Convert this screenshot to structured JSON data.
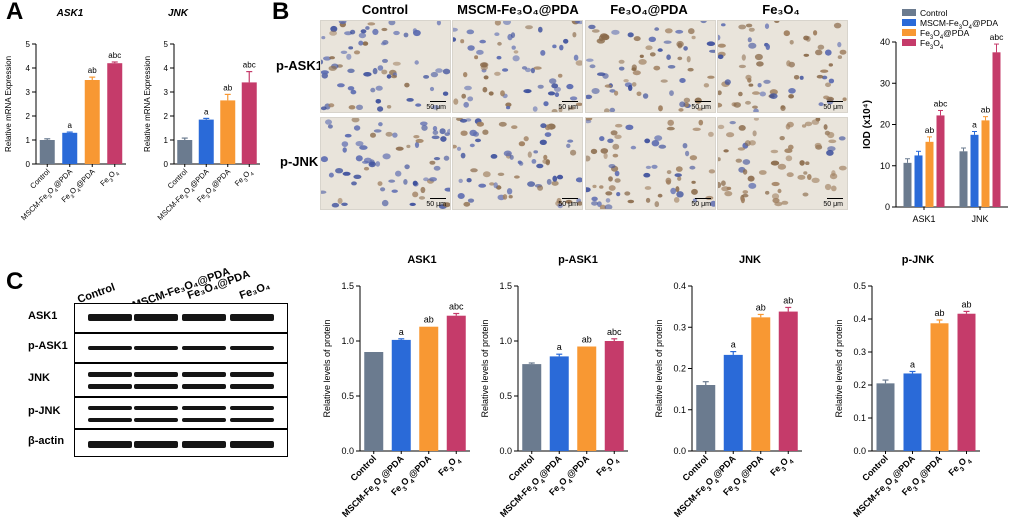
{
  "panels": {
    "A": "A",
    "B": "B",
    "C": "C"
  },
  "colors": {
    "control": "#6b7b8f",
    "mscm": "#2a6ad8",
    "fepda": "#f89833",
    "fe3o4": "#c53b6a"
  },
  "group_labels": [
    "Control",
    "MSCM-Fe₃O₄@PDA",
    "Fe₃O₄@PDA",
    "Fe₃O₄"
  ],
  "ihc": {
    "columns": [
      "Control",
      "MSCM-Fe₃O₄@PDA",
      "Fe₃O₄@PDA",
      "Fe₃O₄"
    ],
    "rows": [
      "p-ASK1",
      "p-JNK"
    ],
    "scale_label": "50 μm"
  },
  "western": {
    "lanes": [
      "Control",
      "MSCM-Fe₃O₄@PDA",
      "Fe₃O₄@PDA",
      "Fe₃O₄"
    ],
    "proteins": [
      "ASK1",
      "p-ASK1",
      "JNK",
      "p-JNK",
      "β-actin"
    ]
  },
  "chart_data": [
    {
      "id": "ask1_mrna",
      "type": "bar",
      "title": "ASK1",
      "ylabel": "Relative mRNA Expression",
      "ylim": [
        0,
        5
      ],
      "ticks": [
        0,
        1,
        2,
        3,
        4,
        5
      ],
      "categories": [
        "Control",
        "MSCM-Fe₃O₄@PDA",
        "Fe₃O₄@PDA",
        "Fe₃O₄"
      ],
      "values": [
        1.0,
        1.3,
        3.5,
        4.2
      ],
      "errors": [
        0.05,
        0.03,
        0.12,
        0.05
      ],
      "annotations": [
        "",
        "a",
        "ab",
        "abc"
      ]
    },
    {
      "id": "jnk_mrna",
      "type": "bar",
      "title": "JNK",
      "ylabel": "Relative mRNA Expression",
      "ylim": [
        0,
        5
      ],
      "ticks": [
        0,
        1,
        2,
        3,
        4,
        5
      ],
      "categories": [
        "Control",
        "MSCM-Fe₃O₄@PDA",
        "Fe₃O₄@PDA",
        "Fe₃O₄"
      ],
      "values": [
        1.0,
        1.85,
        2.65,
        3.4
      ],
      "errors": [
        0.08,
        0.05,
        0.25,
        0.45
      ],
      "annotations": [
        "",
        "a",
        "ab",
        "abc"
      ]
    },
    {
      "id": "iod",
      "type": "grouped-bar",
      "title": "",
      "ylabel": "IOD (x10⁴)",
      "ylim": [
        0,
        40
      ],
      "ticks": [
        0,
        10,
        20,
        30,
        40
      ],
      "categories": [
        "ASK1",
        "JNK"
      ],
      "series": [
        {
          "name": "Control",
          "values": [
            10.7,
            13.5
          ],
          "errors": [
            1.0,
            0.8
          ],
          "annotations": [
            "",
            ""
          ]
        },
        {
          "name": "MSCM-Fe₃O₄@PDA",
          "values": [
            12.5,
            17.5
          ],
          "errors": [
            1.0,
            0.8
          ],
          "annotations": [
            "",
            "a"
          ]
        },
        {
          "name": "Fe₃O₄@PDA",
          "values": [
            15.8,
            21.0
          ],
          "errors": [
            1.2,
            0.9
          ],
          "annotations": [
            "ab",
            "ab"
          ]
        },
        {
          "name": "Fe₃O₄",
          "values": [
            22.2,
            37.5
          ],
          "errors": [
            1.2,
            2.0
          ],
          "annotations": [
            "abc",
            "abc"
          ]
        }
      ]
    },
    {
      "id": "ask1_protein",
      "type": "bar",
      "title": "ASK1",
      "ylabel": "Relative levels of protein",
      "ylim": [
        0,
        1.5
      ],
      "ticks": [
        0.0,
        0.5,
        1.0,
        1.5
      ],
      "tick_labels": [
        "0.0",
        "0.5",
        "1.0",
        "1.5"
      ],
      "categories": [
        "Control",
        "MSCM-Fe₃O₄@PDA",
        "Fe₃O₄@PDA",
        "Fe₃O₄"
      ],
      "values": [
        0.9,
        1.01,
        1.13,
        1.23
      ],
      "errors": [
        0.0,
        0.01,
        0.0,
        0.02
      ],
      "annotations": [
        "",
        "a",
        "ab",
        "abc"
      ]
    },
    {
      "id": "pask1_protein",
      "type": "bar",
      "title": "p-ASK1",
      "ylabel": "Relative levels of protein",
      "ylim": [
        0,
        1.5
      ],
      "ticks": [
        0.0,
        0.5,
        1.0,
        1.5
      ],
      "tick_labels": [
        "0.0",
        "0.5",
        "1.0",
        "1.5"
      ],
      "categories": [
        "Control",
        "MSCM-Fe₃O₄@PDA",
        "Fe₃O₄@PDA",
        "Fe₃O₄"
      ],
      "values": [
        0.79,
        0.86,
        0.95,
        1.0
      ],
      "errors": [
        0.01,
        0.02,
        0.0,
        0.02
      ],
      "annotations": [
        "",
        "a",
        "ab",
        "abc"
      ]
    },
    {
      "id": "jnk_protein",
      "type": "bar",
      "title": "JNK",
      "ylabel": "Relative levels of protein",
      "ylim": [
        0,
        0.4
      ],
      "ticks": [
        0.0,
        0.1,
        0.2,
        0.3,
        0.4
      ],
      "tick_labels": [
        "0.0",
        "0.1",
        "0.2",
        "0.3",
        "0.4"
      ],
      "categories": [
        "Control",
        "MSCM-Fe₃O₄@PDA",
        "Fe₃O₄@PDA",
        "Fe₃O₄"
      ],
      "values": [
        0.16,
        0.233,
        0.324,
        0.338
      ],
      "errors": [
        0.008,
        0.008,
        0.007,
        0.01
      ],
      "annotations": [
        "",
        "a",
        "ab",
        "ab"
      ]
    },
    {
      "id": "pjnk_protein",
      "type": "bar",
      "title": "p-JNK",
      "ylabel": "Relative levels of protein",
      "ylim": [
        0,
        0.5
      ],
      "ticks": [
        0.0,
        0.1,
        0.2,
        0.3,
        0.4,
        0.5
      ],
      "tick_labels": [
        "0.0",
        "0.1",
        "0.2",
        "0.3",
        "0.4",
        "0.5"
      ],
      "categories": [
        "Control",
        "MSCM-Fe₃O₄@PDA",
        "Fe₃O₄@PDA",
        "Fe₃O₄"
      ],
      "values": [
        0.205,
        0.235,
        0.387,
        0.416
      ],
      "errors": [
        0.01,
        0.006,
        0.01,
        0.007
      ],
      "annotations": [
        "",
        "a",
        "ab",
        "ab"
      ]
    }
  ]
}
